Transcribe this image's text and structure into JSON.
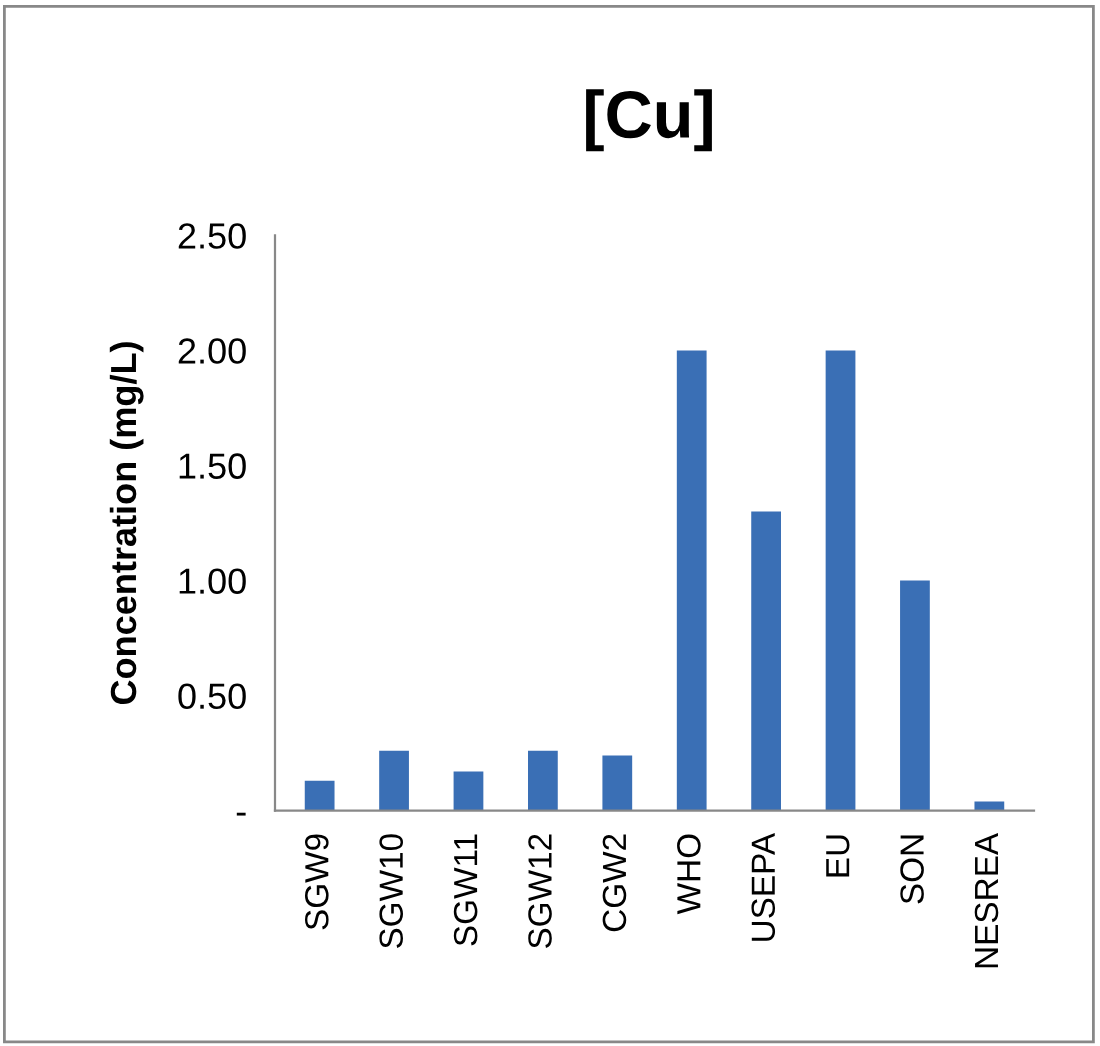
{
  "chart_data": {
    "type": "bar",
    "title": "[Cu]",
    "ylabel": "Concentration (mg/L)",
    "categories": [
      "SGW9",
      "SGW10",
      "SGW11",
      "SGW12",
      "CGW2",
      "WHO",
      "USEPA",
      "EU",
      "SON",
      "NESREA"
    ],
    "values": [
      0.13,
      0.26,
      0.17,
      0.26,
      0.24,
      2.0,
      1.3,
      2.0,
      1.0,
      0.04
    ],
    "color": "#3a6fb5",
    "ylim": [
      0,
      2.5
    ],
    "yticks": [
      {
        "value": 0,
        "label": "-"
      },
      {
        "value": 0.5,
        "label": "0.50"
      },
      {
        "value": 1.0,
        "label": "1.00"
      },
      {
        "value": 1.5,
        "label": "1.50"
      },
      {
        "value": 2.0,
        "label": "2.00"
      },
      {
        "value": 2.5,
        "label": "2.50"
      }
    ],
    "grid": false
  }
}
